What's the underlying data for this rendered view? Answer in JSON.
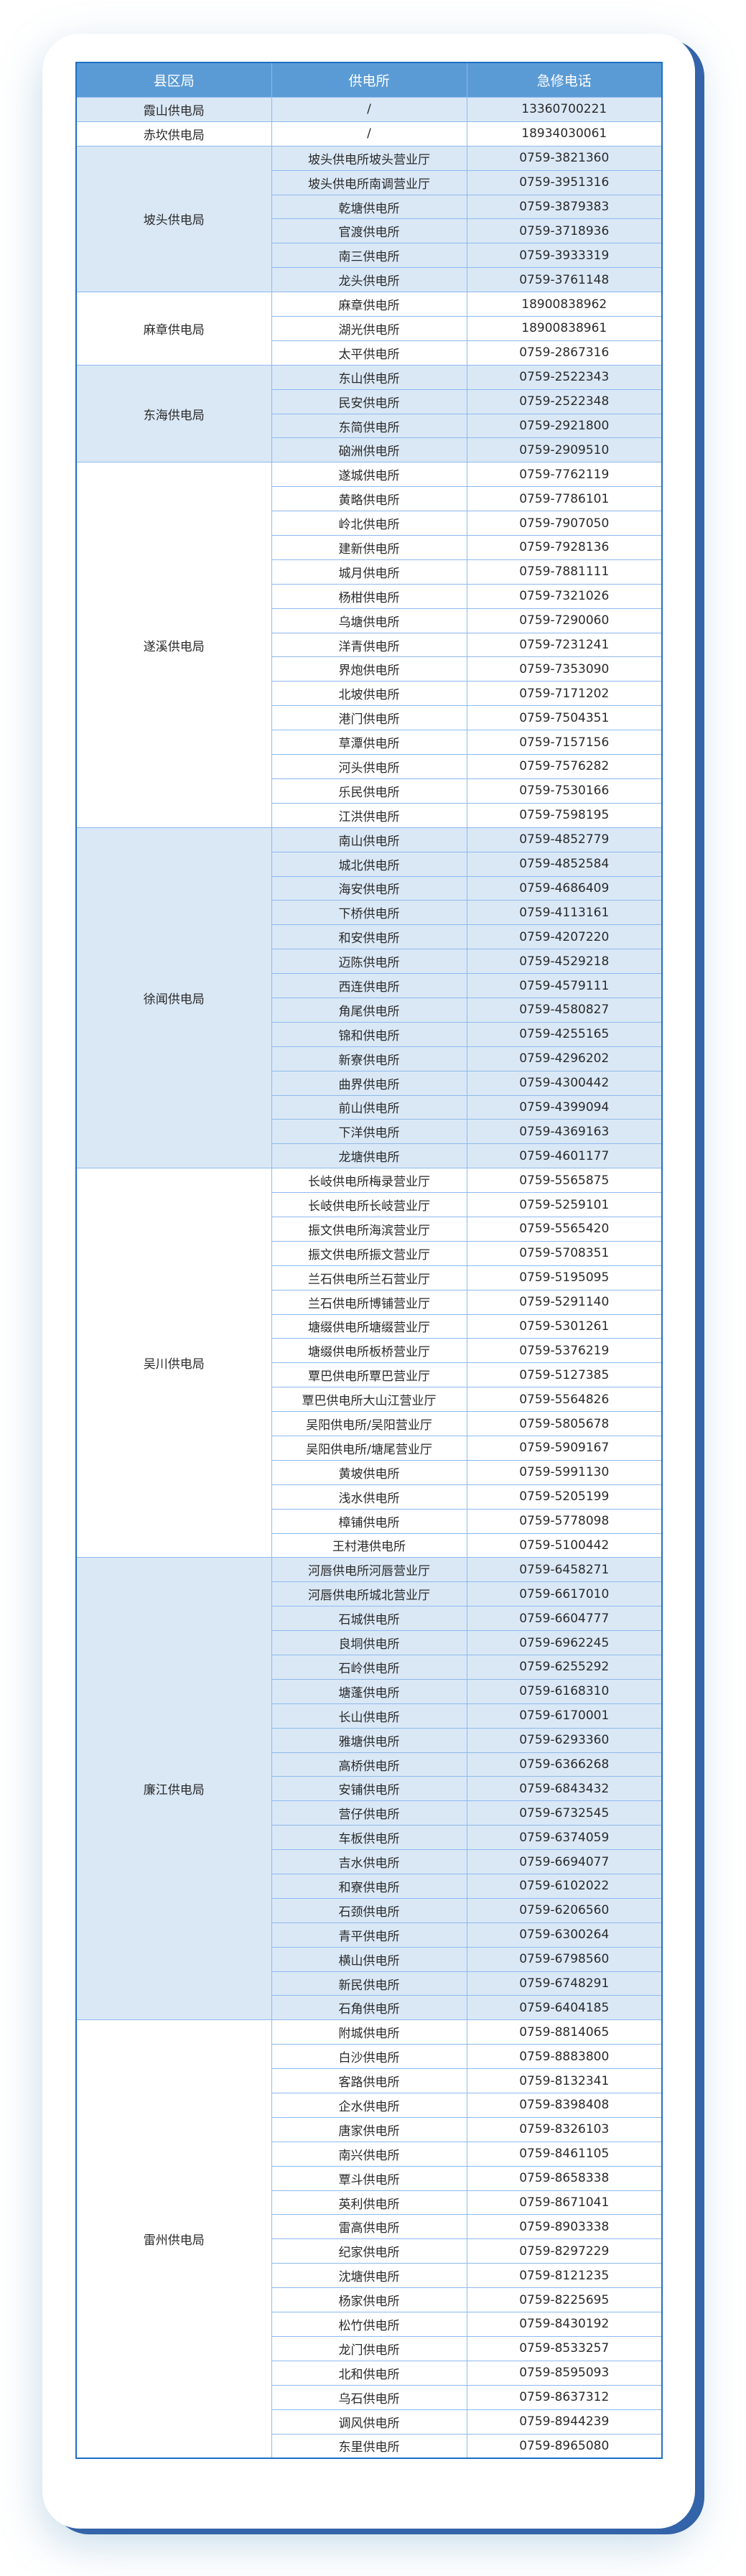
{
  "colors": {
    "header_bg": "#5b9bd5",
    "shade_bg": "#dae8f6",
    "border": "#8db9ee",
    "outer_border": "#1f6fc5",
    "card_edge": "#3363a8"
  },
  "table": {
    "headers": [
      "县区局",
      "供电所",
      "急修电话"
    ],
    "groups": [
      {
        "bureau": "霞山供电局",
        "shaded": true,
        "rows": [
          [
            "/",
            "13360700221"
          ]
        ]
      },
      {
        "bureau": "赤坎供电局",
        "shaded": false,
        "rows": [
          [
            "/",
            "18934030061"
          ]
        ]
      },
      {
        "bureau": "坡头供电局",
        "shaded": true,
        "rows": [
          [
            "坡头供电所坡头营业厅",
            "0759-3821360"
          ],
          [
            "坡头供电所南调营业厅",
            "0759-3951316"
          ],
          [
            "乾塘供电所",
            "0759-3879383"
          ],
          [
            "官渡供电所",
            "0759-3718936"
          ],
          [
            "南三供电所",
            "0759-3933319"
          ],
          [
            "龙头供电所",
            "0759-3761148"
          ]
        ]
      },
      {
        "bureau": "麻章供电局",
        "shaded": false,
        "rows": [
          [
            "麻章供电所",
            "18900838962"
          ],
          [
            "湖光供电所",
            "18900838961"
          ],
          [
            "太平供电所",
            "0759-2867316"
          ]
        ]
      },
      {
        "bureau": "东海供电局",
        "shaded": true,
        "rows": [
          [
            "东山供电所",
            "0759-2522343"
          ],
          [
            "民安供电所",
            "0759-2522348"
          ],
          [
            "东简供电所",
            "0759-2921800"
          ],
          [
            "硇洲供电所",
            "0759-2909510"
          ]
        ]
      },
      {
        "bureau": "遂溪供电局",
        "shaded": false,
        "rows": [
          [
            "遂城供电所",
            "0759-7762119"
          ],
          [
            "黄略供电所",
            "0759-7786101"
          ],
          [
            "岭北供电所",
            "0759-7907050"
          ],
          [
            "建新供电所",
            "0759-7928136"
          ],
          [
            "城月供电所",
            "0759-7881111"
          ],
          [
            "杨柑供电所",
            "0759-7321026"
          ],
          [
            "乌塘供电所",
            "0759-7290060"
          ],
          [
            "洋青供电所",
            "0759-7231241"
          ],
          [
            "界炮供电所",
            "0759-7353090"
          ],
          [
            "北坡供电所",
            "0759-7171202"
          ],
          [
            "港门供电所",
            "0759-7504351"
          ],
          [
            "草潭供电所",
            "0759-7157156"
          ],
          [
            "河头供电所",
            "0759-7576282"
          ],
          [
            "乐民供电所",
            "0759-7530166"
          ],
          [
            "江洪供电所",
            "0759-7598195"
          ]
        ]
      },
      {
        "bureau": "徐闻供电局",
        "shaded": true,
        "rows": [
          [
            "南山供电所",
            "0759-4852779"
          ],
          [
            "城北供电所",
            "0759-4852584"
          ],
          [
            "海安供电所",
            "0759-4686409"
          ],
          [
            "下桥供电所",
            "0759-4113161"
          ],
          [
            "和安供电所",
            "0759-4207220"
          ],
          [
            "迈陈供电所",
            "0759-4529218"
          ],
          [
            "西连供电所",
            "0759-4579111"
          ],
          [
            "角尾供电所",
            "0759-4580827"
          ],
          [
            "锦和供电所",
            "0759-4255165"
          ],
          [
            "新寮供电所",
            "0759-4296202"
          ],
          [
            "曲界供电所",
            "0759-4300442"
          ],
          [
            "前山供电所",
            "0759-4399094"
          ],
          [
            "下洋供电所",
            "0759-4369163"
          ],
          [
            "龙塘供电所",
            "0759-4601177"
          ]
        ]
      },
      {
        "bureau": "吴川供电局",
        "shaded": false,
        "rows": [
          [
            "长岐供电所梅录营业厅",
            "0759-5565875"
          ],
          [
            "长岐供电所长岐营业厅",
            "0759-5259101"
          ],
          [
            "振文供电所海滨营业厅",
            "0759-5565420"
          ],
          [
            "振文供电所振文营业厅",
            "0759-5708351"
          ],
          [
            "兰石供电所兰石营业厅",
            "0759-5195095"
          ],
          [
            "兰石供电所博铺营业厅",
            "0759-5291140"
          ],
          [
            "塘缀供电所塘缀营业厅",
            "0759-5301261"
          ],
          [
            "塘缀供电所板桥营业厅",
            "0759-5376219"
          ],
          [
            "覃巴供电所覃巴营业厅",
            "0759-5127385"
          ],
          [
            "覃巴供电所大山江营业厅",
            "0759-5564826"
          ],
          [
            "吴阳供电所/吴阳营业厅",
            "0759-5805678"
          ],
          [
            "吴阳供电所/塘尾营业厅",
            "0759-5909167"
          ],
          [
            "黄坡供电所",
            "0759-5991130"
          ],
          [
            "浅水供电所",
            "0759-5205199"
          ],
          [
            "樟铺供电所",
            "0759-5778098"
          ],
          [
            "王村港供电所",
            "0759-5100442"
          ]
        ]
      },
      {
        "bureau": "廉江供电局",
        "shaded": true,
        "rows": [
          [
            "河唇供电所河唇营业厅",
            "0759-6458271"
          ],
          [
            "河唇供电所城北营业厅",
            "0759-6617010"
          ],
          [
            "石城供电所",
            "0759-6604777"
          ],
          [
            "良垌供电所",
            "0759-6962245"
          ],
          [
            "石岭供电所",
            "0759-6255292"
          ],
          [
            "塘蓬供电所",
            "0759-6168310"
          ],
          [
            "长山供电所",
            "0759-6170001"
          ],
          [
            "雅塘供电所",
            "0759-6293360"
          ],
          [
            "高桥供电所",
            "0759-6366268"
          ],
          [
            "安铺供电所",
            "0759-6843432"
          ],
          [
            "营仔供电所",
            "0759-6732545"
          ],
          [
            "车板供电所",
            "0759-6374059"
          ],
          [
            "吉水供电所",
            "0759-6694077"
          ],
          [
            "和寮供电所",
            "0759-6102022"
          ],
          [
            "石颈供电所",
            "0759-6206560"
          ],
          [
            "青平供电所",
            "0759-6300264"
          ],
          [
            "横山供电所",
            "0759-6798560"
          ],
          [
            "新民供电所",
            "0759-6748291"
          ],
          [
            "石角供电所",
            "0759-6404185"
          ]
        ]
      },
      {
        "bureau": "雷州供电局",
        "shaded": false,
        "rows": [
          [
            "附城供电所",
            "0759-8814065"
          ],
          [
            "白沙供电所",
            "0759-8883800"
          ],
          [
            "客路供电所",
            "0759-8132341"
          ],
          [
            "企水供电所",
            "0759-8398408"
          ],
          [
            "唐家供电所",
            "0759-8326103"
          ],
          [
            "南兴供电所",
            "0759-8461105"
          ],
          [
            "覃斗供电所",
            "0759-8658338"
          ],
          [
            "英利供电所",
            "0759-8671041"
          ],
          [
            "雷高供电所",
            "0759-8903338"
          ],
          [
            "纪家供电所",
            "0759-8297229"
          ],
          [
            "沈塘供电所",
            "0759-8121235"
          ],
          [
            "杨家供电所",
            "0759-8225695"
          ],
          [
            "松竹供电所",
            "0759-8430192"
          ],
          [
            "龙门供电所",
            "0759-8533257"
          ],
          [
            "北和供电所",
            "0759-8595093"
          ],
          [
            "乌石供电所",
            "0759-8637312"
          ],
          [
            "调风供电所",
            "0759-8944239"
          ],
          [
            "东里供电所",
            "0759-8965080"
          ]
        ]
      }
    ]
  }
}
